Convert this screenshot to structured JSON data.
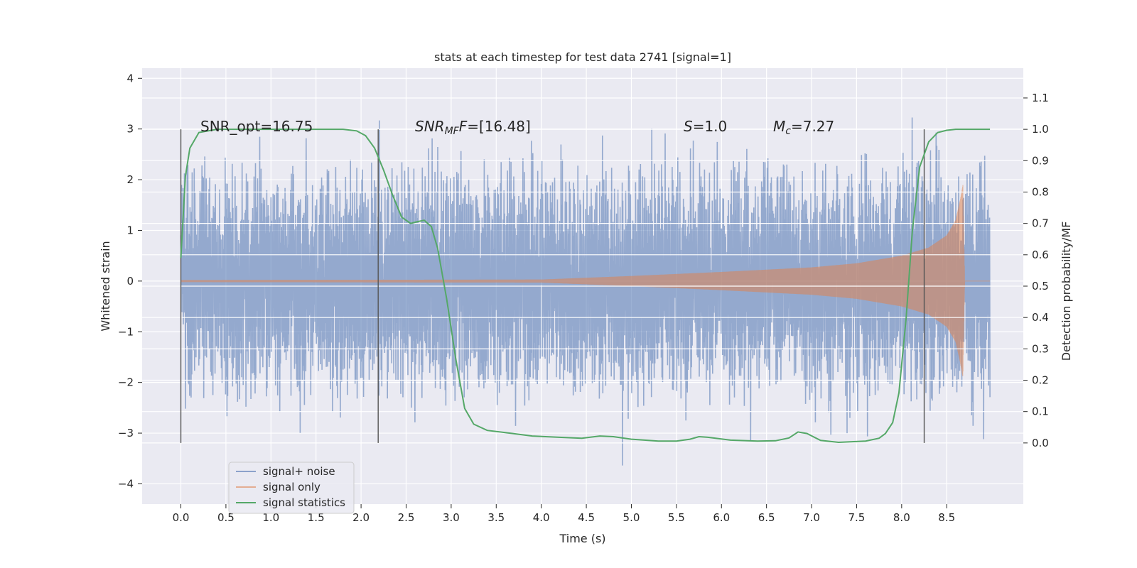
{
  "chart_data": {
    "type": "line",
    "title": "stats at each timestep for test data 2741 [signal=1]",
    "xlabel": "Time (s)",
    "ylabel_left": "Whitened strain",
    "ylabel_right": "Detection probability/MF",
    "x_range": [
      -0.43,
      9.35
    ],
    "x_ticks": [
      "0.0",
      "0.5",
      "1.0",
      "1.5",
      "2.0",
      "2.5",
      "3.0",
      "3.5",
      "4.0",
      "4.5",
      "5.0",
      "5.5",
      "6.0",
      "6.5",
      "7.0",
      "7.5",
      "8.0",
      "8.5"
    ],
    "y_left_range": [
      -4.4,
      4.2
    ],
    "y_left_ticks": [
      "4",
      "3",
      "2",
      "1",
      "0",
      "−1",
      "−2",
      "−3",
      "−4"
    ],
    "y_right_range": [
      -0.195,
      1.195
    ],
    "y_right_ticks": [
      "1.1",
      "1.0",
      "0.9",
      "0.8",
      "0.7",
      "0.6",
      "0.5",
      "0.4",
      "0.3",
      "0.2",
      "0.1",
      "0.0"
    ],
    "grid": true,
    "legend_position": "lower-left",
    "annotations": {
      "snr_opt": "SNR_opt=16.75",
      "snr_mf_sym": "SNR",
      "snr_mf_sub": "MF",
      "snr_mf_val": "=[16.48]",
      "s_sym": "S",
      "s_val": "=1.0",
      "mc_sym": "M",
      "mc_sub": "c",
      "mc_val": "=7.27"
    },
    "vertical_markers_x": [
      0.0,
      2.19,
      8.25
    ],
    "noise_series": {
      "name": "signal+ noise",
      "color": "#4c72b0",
      "x_start": 0.0,
      "x_end": 8.98,
      "sample_rate_hz": 256,
      "core_amplitude": 1.8,
      "max_amplitude": 4.0
    },
    "signal_series": {
      "name": "signal only",
      "color": "#dd8452",
      "envelope_x": [
        0.0,
        4.0,
        5.0,
        6.0,
        7.0,
        7.5,
        8.0,
        8.3,
        8.5,
        8.6,
        8.65,
        8.68,
        8.7,
        8.98
      ],
      "envelope_y": [
        0.02,
        0.03,
        0.1,
        0.18,
        0.27,
        0.35,
        0.5,
        0.66,
        0.9,
        1.2,
        1.6,
        1.9,
        0.0,
        0.0
      ]
    },
    "stat_series": {
      "name": "signal statistics",
      "color": "#55a868",
      "x": [
        0.0,
        0.05,
        0.1,
        0.2,
        0.4,
        1.0,
        1.5,
        1.8,
        1.95,
        2.05,
        2.15,
        2.25,
        2.35,
        2.45,
        2.55,
        2.62,
        2.7,
        2.78,
        2.85,
        2.95,
        3.05,
        3.15,
        3.25,
        3.4,
        3.6,
        3.9,
        4.2,
        4.45,
        4.65,
        4.8,
        5.0,
        5.3,
        5.5,
        5.65,
        5.75,
        5.85,
        6.1,
        6.4,
        6.6,
        6.75,
        6.85,
        6.95,
        7.1,
        7.3,
        7.6,
        7.75,
        7.82,
        7.9,
        7.97,
        8.05,
        8.12,
        8.2,
        8.3,
        8.4,
        8.5,
        8.6,
        8.75,
        8.98
      ],
      "y": [
        0.59,
        0.85,
        0.94,
        0.99,
        1.0,
        1.0,
        1.0,
        1.0,
        0.995,
        0.98,
        0.94,
        0.87,
        0.79,
        0.72,
        0.7,
        0.705,
        0.71,
        0.69,
        0.62,
        0.46,
        0.27,
        0.11,
        0.06,
        0.04,
        0.033,
        0.022,
        0.018,
        0.015,
        0.022,
        0.02,
        0.012,
        0.006,
        0.006,
        0.012,
        0.02,
        0.018,
        0.009,
        0.006,
        0.007,
        0.016,
        0.035,
        0.03,
        0.008,
        0.002,
        0.006,
        0.015,
        0.03,
        0.065,
        0.16,
        0.4,
        0.68,
        0.88,
        0.96,
        0.99,
        0.997,
        1.0,
        1.0,
        1.0
      ]
    }
  }
}
